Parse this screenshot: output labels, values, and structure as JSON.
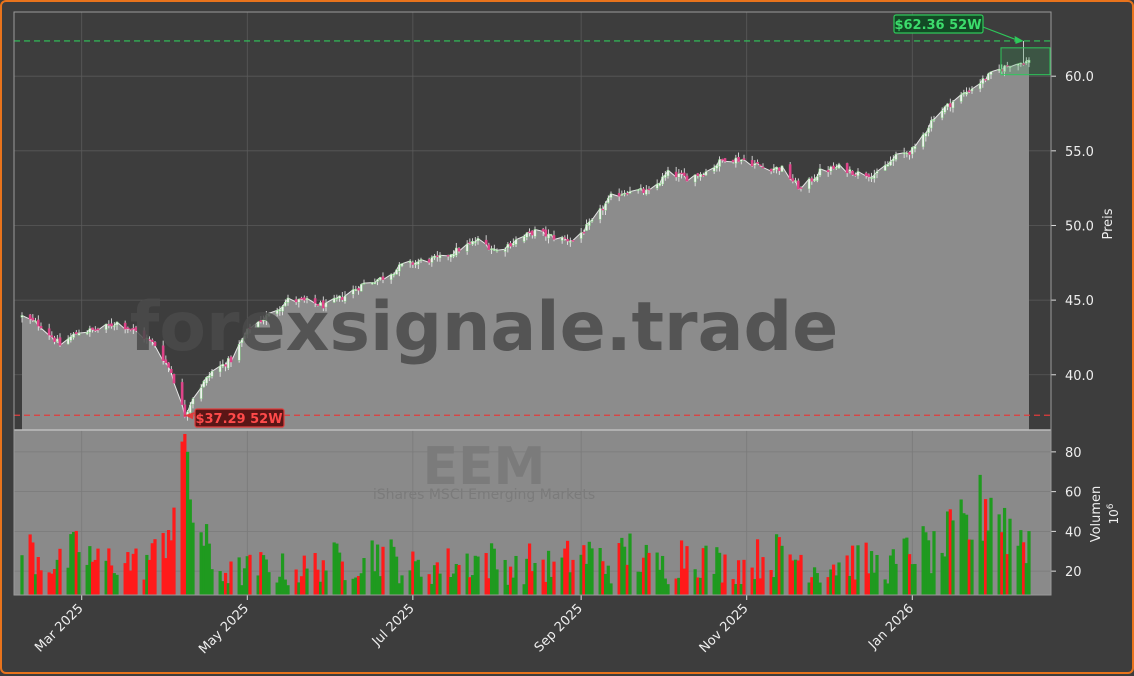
{
  "chart_data": {
    "type": "candlestick_with_volume",
    "watermark": "forexsignale.trade",
    "symbol": "EEM",
    "subtitle": "iShares MSCI Emerging Markets",
    "price_axis": {
      "label": "Preis",
      "ticks": [
        40.0,
        45.0,
        50.0,
        55.0,
        60.0
      ],
      "tick_labels": [
        "40.0",
        "45.0",
        "50.0",
        "55.0",
        "60.0"
      ],
      "ylim": [
        36.3,
        64.3
      ]
    },
    "volume_axis": {
      "label": "Volumen",
      "unit": "10^6",
      "unit_label": "10",
      "unit_exp": "6",
      "ticks": [
        20,
        40,
        60,
        80
      ],
      "tick_labels": [
        "20",
        "40",
        "60",
        "80"
      ],
      "ylim": [
        8,
        91
      ]
    },
    "x_axis": {
      "tick_labels": [
        "Mar 2025",
        "May 2025",
        "Jul 2025",
        "Sep 2025",
        "Nov 2025",
        "Jan 2026"
      ],
      "tick_dates": [
        "2025-03-01",
        "2025-05-01",
        "2025-07-01",
        "2025-09-01",
        "2025-11-01",
        "2026-01-01"
      ],
      "start": "2025-02-07",
      "end": "2026-02-13"
    },
    "high_52w": {
      "label": "$62.36 52W",
      "value": 62.36,
      "date": "2026-02-11"
    },
    "low_52w": {
      "label": "$37.29 52W",
      "value": 37.29,
      "date": "2025-04-08"
    },
    "price_series": [
      [
        "2025-02-07",
        43.9
      ],
      [
        "2025-02-14",
        43.3
      ],
      [
        "2025-02-21",
        42.0
      ],
      [
        "2025-02-28",
        42.9
      ],
      [
        "2025-03-07",
        43.0
      ],
      [
        "2025-03-14",
        43.5
      ],
      [
        "2025-03-21",
        42.9
      ],
      [
        "2025-03-28",
        42.0
      ],
      [
        "2025-04-03",
        40.2
      ],
      [
        "2025-04-08",
        37.3
      ],
      [
        "2025-04-11",
        38.5
      ],
      [
        "2025-04-18",
        40.2
      ],
      [
        "2025-04-25",
        41.0
      ],
      [
        "2025-05-02",
        43.2
      ],
      [
        "2025-05-09",
        44.0
      ],
      [
        "2025-05-16",
        45.0
      ],
      [
        "2025-05-23",
        44.9
      ],
      [
        "2025-05-30",
        44.6
      ],
      [
        "2025-06-06",
        45.3
      ],
      [
        "2025-06-13",
        46.1
      ],
      [
        "2025-06-20",
        46.5
      ],
      [
        "2025-06-27",
        47.3
      ],
      [
        "2025-07-04",
        47.6
      ],
      [
        "2025-07-11",
        47.8
      ],
      [
        "2025-07-18",
        48.4
      ],
      [
        "2025-07-25",
        49.0
      ],
      [
        "2025-08-01",
        48.3
      ],
      [
        "2025-08-08",
        49.0
      ],
      [
        "2025-08-15",
        49.6
      ],
      [
        "2025-08-22",
        49.2
      ],
      [
        "2025-08-29",
        49.0
      ],
      [
        "2025-09-05",
        50.2
      ],
      [
        "2025-09-12",
        51.9
      ],
      [
        "2025-09-19",
        52.4
      ],
      [
        "2025-09-26",
        52.2
      ],
      [
        "2025-10-03",
        53.5
      ],
      [
        "2025-10-10",
        53.2
      ],
      [
        "2025-10-17",
        53.6
      ],
      [
        "2025-10-24",
        54.5
      ],
      [
        "2025-10-31",
        54.4
      ],
      [
        "2025-11-07",
        53.9
      ],
      [
        "2025-11-14",
        53.8
      ],
      [
        "2025-11-21",
        52.4
      ],
      [
        "2025-11-28",
        53.6
      ],
      [
        "2025-12-05",
        53.9
      ],
      [
        "2025-12-12",
        53.5
      ],
      [
        "2025-12-19",
        53.4
      ],
      [
        "2025-12-26",
        54.6
      ],
      [
        "2026-01-02",
        55.1
      ],
      [
        "2026-01-09",
        57.3
      ],
      [
        "2026-01-16",
        58.3
      ],
      [
        "2026-01-23",
        59.2
      ],
      [
        "2026-01-30",
        60.1
      ],
      [
        "2026-02-06",
        60.8
      ],
      [
        "2026-02-13",
        61.0
      ]
    ],
    "volume_series": [
      [
        "2025-02-07",
        36
      ],
      [
        "2025-02-14",
        28
      ],
      [
        "2025-02-21",
        24
      ],
      [
        "2025-02-28",
        33
      ],
      [
        "2025-03-07",
        25
      ],
      [
        "2025-03-14",
        28
      ],
      [
        "2025-03-21",
        25
      ],
      [
        "2025-03-28",
        29
      ],
      [
        "2025-04-03",
        50
      ],
      [
        "2025-04-08",
        87
      ],
      [
        "2025-04-11",
        56
      ],
      [
        "2025-04-18",
        24
      ],
      [
        "2025-04-25",
        20
      ],
      [
        "2025-05-02",
        22
      ],
      [
        "2025-05-09",
        24
      ],
      [
        "2025-05-16",
        21
      ],
      [
        "2025-05-23",
        22
      ],
      [
        "2025-05-30",
        27
      ],
      [
        "2025-06-06",
        25
      ],
      [
        "2025-06-13",
        30
      ],
      [
        "2025-06-20",
        31
      ],
      [
        "2025-06-27",
        24
      ],
      [
        "2025-07-04",
        22
      ],
      [
        "2025-07-11",
        24
      ],
      [
        "2025-07-18",
        25
      ],
      [
        "2025-07-25",
        28
      ],
      [
        "2025-08-01",
        26
      ],
      [
        "2025-08-08",
        22
      ],
      [
        "2025-08-15",
        27
      ],
      [
        "2025-08-22",
        22
      ],
      [
        "2025-08-29",
        29
      ],
      [
        "2025-09-05",
        30
      ],
      [
        "2025-09-12",
        24
      ],
      [
        "2025-09-19",
        32
      ],
      [
        "2025-09-26",
        25
      ],
      [
        "2025-10-03",
        23
      ],
      [
        "2025-10-10",
        33
      ],
      [
        "2025-10-17",
        27
      ],
      [
        "2025-10-24",
        24
      ],
      [
        "2025-10-31",
        24
      ],
      [
        "2025-11-07",
        29
      ],
      [
        "2025-11-14",
        30
      ],
      [
        "2025-11-21",
        28
      ],
      [
        "2025-11-28",
        22
      ],
      [
        "2025-12-05",
        26
      ],
      [
        "2025-12-12",
        27
      ],
      [
        "2025-12-19",
        24
      ],
      [
        "2025-12-26",
        24
      ],
      [
        "2026-01-02",
        35
      ],
      [
        "2026-01-09",
        30
      ],
      [
        "2026-01-16",
        40
      ],
      [
        "2026-01-23",
        45
      ],
      [
        "2026-01-30",
        62
      ],
      [
        "2026-02-06",
        42
      ],
      [
        "2026-02-13",
        38
      ]
    ]
  }
}
